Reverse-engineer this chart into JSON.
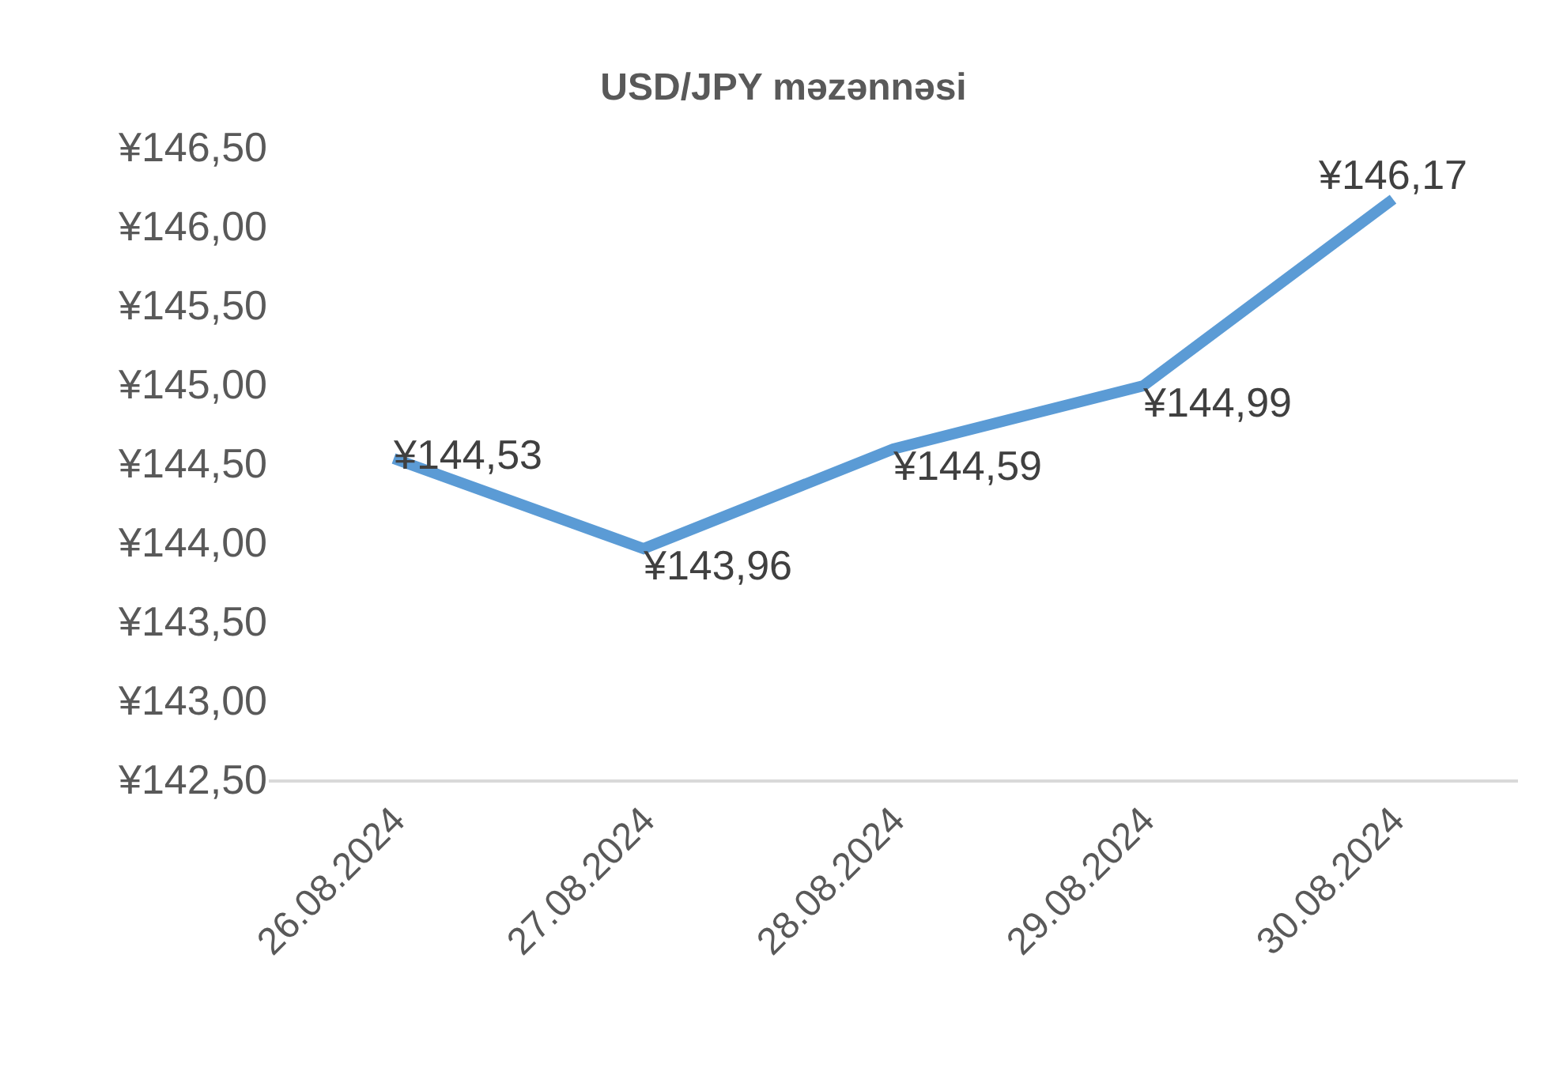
{
  "chart_data": {
    "type": "line",
    "title": "USD/JPY məzənnəsi",
    "categories": [
      "26.08.2024",
      "27.08.2024",
      "28.08.2024",
      "29.08.2024",
      "30.08.2024"
    ],
    "series": [
      {
        "color": "#5b9bd5",
        "values": [
          144.53,
          143.96,
          144.59,
          144.99,
          146.17
        ],
        "value_labels": [
          "¥144,53",
          "¥143,96",
          "¥144,59",
          "¥144,99",
          "¥146,17"
        ]
      }
    ],
    "ylim": [
      142.5,
      146.5
    ],
    "yticks": [
      {
        "value": 142.5,
        "label": "¥142,50"
      },
      {
        "value": 143,
        "label": "¥143,00"
      },
      {
        "value": 143.5,
        "label": "¥143,50"
      },
      {
        "value": 144,
        "label": "¥144,00"
      },
      {
        "value": 144.5,
        "label": "¥144,50"
      },
      {
        "value": 145,
        "label": "¥145,00"
      },
      {
        "value": 145.5,
        "label": "¥145,50"
      },
      {
        "value": 146,
        "label": "¥146,00"
      },
      {
        "value": 146.5,
        "label": "¥146,50"
      }
    ]
  }
}
